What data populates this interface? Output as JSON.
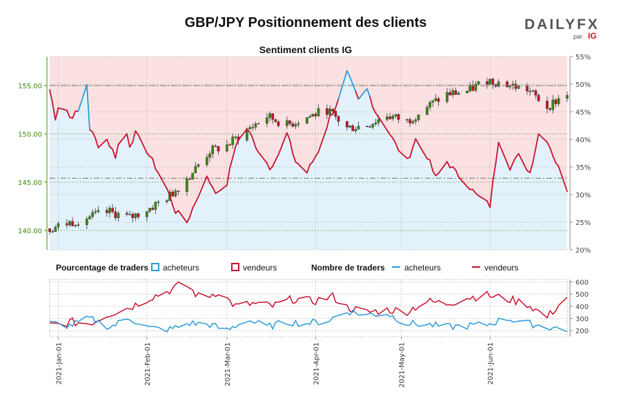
{
  "title": "GBP/JPY Positionnement des clients",
  "logo": {
    "brand": "DAILYFX",
    "by": "par",
    "ig": "IG"
  },
  "legend": {
    "group1_title": "Pourcentage de traders",
    "group2_title": "Nombre de traders",
    "buyers": "acheteurs",
    "sellers": "vendeurs"
  },
  "colors": {
    "price_axis": "#3a8a10",
    "buyers": "#2b9bd6",
    "sellers": "#c8102e",
    "buyer_fill": "#e3f2fa",
    "seller_fill": "#fbe1e1",
    "candle_up": "#3a8a10",
    "candle_down": "#c8102e"
  },
  "chart_data": [
    {
      "type": "candlestick+line",
      "title": "Sentiment clients IG",
      "price_axis": {
        "ticks": [
          "140.00",
          "145.00",
          "150.00",
          "155.00"
        ],
        "ylim": [
          138,
          158
        ]
      },
      "percent_axis": {
        "ticks": [
          "20%",
          "25%",
          "30%",
          "35%",
          "40%",
          "45%",
          "50%",
          "55%"
        ],
        "ylim": [
          20,
          55
        ]
      },
      "x_range": [
        "2020-12-29",
        "2021-06-28"
      ],
      "reference_lines": {
        "price_high": 155.0,
        "price_low": 145.4
      },
      "sellers_pct_anchors": [
        [
          "2020-12-29",
          49
        ],
        [
          "2020-12-31",
          44
        ],
        [
          "2021-01-02",
          48
        ],
        [
          "2021-01-05",
          44
        ],
        [
          "2021-01-08",
          45
        ],
        [
          "2021-01-11",
          50
        ],
        [
          "2021-01-12",
          42
        ],
        [
          "2021-01-15",
          39
        ],
        [
          "2021-01-18",
          40
        ],
        [
          "2021-01-21",
          37
        ],
        [
          "2021-01-24",
          43
        ],
        [
          "2021-01-26",
          39
        ],
        [
          "2021-01-28",
          41
        ],
        [
          "2021-02-01",
          38
        ],
        [
          "2021-02-04",
          35
        ],
        [
          "2021-02-08",
          31
        ],
        [
          "2021-02-11",
          27
        ],
        [
          "2021-02-15",
          25
        ],
        [
          "2021-02-19",
          30
        ],
        [
          "2021-02-22",
          33
        ],
        [
          "2021-02-26",
          30
        ],
        [
          "2021-03-01",
          32
        ],
        [
          "2021-03-04",
          39
        ],
        [
          "2021-03-08",
          42
        ],
        [
          "2021-03-12",
          38
        ],
        [
          "2021-03-16",
          35
        ],
        [
          "2021-03-19",
          37
        ],
        [
          "2021-03-22",
          41
        ],
        [
          "2021-03-25",
          36
        ],
        [
          "2021-03-29",
          34
        ],
        [
          "2021-04-02",
          38
        ],
        [
          "2021-04-06",
          44
        ],
        [
          "2021-04-09",
          47
        ],
        [
          "2021-04-12",
          52
        ],
        [
          "2021-04-16",
          47
        ],
        [
          "2021-04-19",
          49
        ],
        [
          "2021-04-22",
          45
        ],
        [
          "2021-04-26",
          42
        ],
        [
          "2021-04-29",
          39
        ],
        [
          "2021-05-03",
          36
        ],
        [
          "2021-05-06",
          40
        ],
        [
          "2021-05-10",
          37
        ],
        [
          "2021-05-13",
          33
        ],
        [
          "2021-05-17",
          36
        ],
        [
          "2021-05-20",
          34
        ],
        [
          "2021-05-24",
          32
        ],
        [
          "2021-05-27",
          30
        ],
        [
          "2021-06-01",
          28
        ],
        [
          "2021-06-04",
          40
        ],
        [
          "2021-06-08",
          35
        ],
        [
          "2021-06-11",
          37
        ],
        [
          "2021-06-15",
          34
        ],
        [
          "2021-06-18",
          41
        ],
        [
          "2021-06-21",
          40
        ],
        [
          "2021-06-24",
          36
        ],
        [
          "2021-06-28",
          31
        ]
      ],
      "price_anchors": [
        [
          "2020-12-29",
          140.2
        ],
        [
          "2021-01-05",
          140.8
        ],
        [
          "2021-01-12",
          141.4
        ],
        [
          "2021-01-19",
          141.9
        ],
        [
          "2021-01-26",
          141.3
        ],
        [
          "2021-02-02",
          142.3
        ],
        [
          "2021-02-09",
          143.6
        ],
        [
          "2021-02-16",
          145.7
        ],
        [
          "2021-02-23",
          148.2
        ],
        [
          "2021-03-01",
          148.8
        ],
        [
          "2021-03-08",
          150.4
        ],
        [
          "2021-03-15",
          151.8
        ],
        [
          "2021-03-22",
          150.9
        ],
        [
          "2021-03-29",
          151.7
        ],
        [
          "2021-04-05",
          152.5
        ],
        [
          "2021-04-12",
          150.6
        ],
        [
          "2021-04-19",
          150.9
        ],
        [
          "2021-04-26",
          151.9
        ],
        [
          "2021-05-03",
          151.3
        ],
        [
          "2021-05-10",
          152.8
        ],
        [
          "2021-05-17",
          154.1
        ],
        [
          "2021-05-24",
          154.4
        ],
        [
          "2021-05-31",
          155.6
        ],
        [
          "2021-06-07",
          155.1
        ],
        [
          "2021-06-14",
          154.6
        ],
        [
          "2021-06-21",
          152.8
        ],
        [
          "2021-06-28",
          154.2
        ]
      ]
    },
    {
      "type": "line",
      "title": "Nombre de traders",
      "y_ticks": [
        "200",
        "300",
        "400",
        "500",
        "600"
      ],
      "ylim": [
        150,
        620
      ],
      "x_ticks": [
        "2021-Jan-01",
        "2021-Feb-01",
        "2021-Mar-01",
        "2021-Apr-01",
        "2021-May-01",
        "2021-Jun-01"
      ],
      "series": [
        {
          "name": "vendeurs",
          "anchors": [
            [
              "2020-12-29",
              240
            ],
            [
              "2021-01-05",
              270
            ],
            [
              "2021-01-12",
              260
            ],
            [
              "2021-01-19",
              340
            ],
            [
              "2021-01-26",
              390
            ],
            [
              "2021-02-02",
              470
            ],
            [
              "2021-02-08",
              520
            ],
            [
              "2021-02-14",
              590
            ],
            [
              "2021-02-20",
              460
            ],
            [
              "2021-02-26",
              520
            ],
            [
              "2021-03-04",
              400
            ],
            [
              "2021-03-10",
              420
            ],
            [
              "2021-03-17",
              400
            ],
            [
              "2021-03-24",
              460
            ],
            [
              "2021-03-31",
              440
            ],
            [
              "2021-04-07",
              480
            ],
            [
              "2021-04-12",
              390
            ],
            [
              "2021-04-19",
              350
            ],
            [
              "2021-04-26",
              370
            ],
            [
              "2021-05-03",
              360
            ],
            [
              "2021-05-10",
              440
            ],
            [
              "2021-05-17",
              420
            ],
            [
              "2021-05-24",
              470
            ],
            [
              "2021-05-31",
              490
            ],
            [
              "2021-06-07",
              460
            ],
            [
              "2021-06-14",
              420
            ],
            [
              "2021-06-21",
              310
            ],
            [
              "2021-06-28",
              480
            ]
          ]
        },
        {
          "name": "acheteurs",
          "anchors": [
            [
              "2020-12-29",
              260
            ],
            [
              "2021-01-05",
              240
            ],
            [
              "2021-01-12",
              300
            ],
            [
              "2021-01-19",
              230
            ],
            [
              "2021-01-26",
              300
            ],
            [
              "2021-02-02",
              220
            ],
            [
              "2021-02-09",
              210
            ],
            [
              "2021-02-16",
              260
            ],
            [
              "2021-02-23",
              250
            ],
            [
              "2021-03-01",
              200
            ],
            [
              "2021-03-08",
              290
            ],
            [
              "2021-03-15",
              230
            ],
            [
              "2021-03-22",
              270
            ],
            [
              "2021-03-29",
              260
            ],
            [
              "2021-04-05",
              280
            ],
            [
              "2021-04-12",
              360
            ],
            [
              "2021-04-19",
              330
            ],
            [
              "2021-04-26",
              340
            ],
            [
              "2021-05-03",
              260
            ],
            [
              "2021-05-10",
              250
            ],
            [
              "2021-05-17",
              230
            ],
            [
              "2021-05-24",
              240
            ],
            [
              "2021-05-31",
              250
            ],
            [
              "2021-06-07",
              300
            ],
            [
              "2021-06-14",
              260
            ],
            [
              "2021-06-21",
              230
            ],
            [
              "2021-06-28",
              210
            ]
          ]
        }
      ]
    }
  ]
}
